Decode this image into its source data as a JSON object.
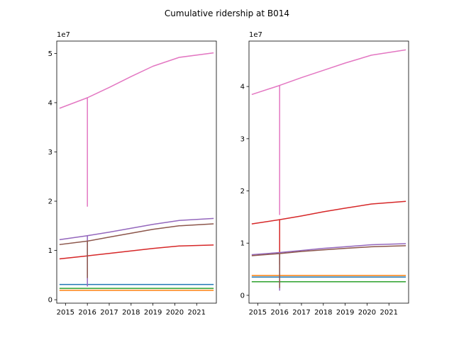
{
  "figure": {
    "title": "Cumulative ridership at B014"
  },
  "chart_data": [
    {
      "type": "line",
      "title": "",
      "xlabel": "",
      "ylabel": "",
      "x_ticks": [
        "2015",
        "2016",
        "2017",
        "2018",
        "2019",
        "2020",
        "2021"
      ],
      "xlim": [
        2014.6,
        2021.9
      ],
      "ylim": [
        -0.07,
        5.25
      ],
      "y_ticks": [
        0,
        1,
        2,
        3,
        4,
        5
      ],
      "y_offset_label": "1e7",
      "series": [
        {
          "color": "#1f77b4",
          "points": [
            [
              2014.75,
              0.31
            ],
            [
              2021.75,
              0.31
            ]
          ]
        },
        {
          "color": "#ff7f0e",
          "points": [
            [
              2014.75,
              0.19
            ],
            [
              2021.75,
              0.19
            ]
          ]
        },
        {
          "color": "#2ca02c",
          "points": [
            [
              2014.75,
              0.23
            ],
            [
              2021.75,
              0.23
            ]
          ]
        },
        {
          "color": "#d62728",
          "points": [
            [
              2014.75,
              0.83
            ],
            [
              2016.0,
              0.89
            ],
            [
              2017.0,
              0.94
            ],
            [
              2018.0,
              0.99
            ],
            [
              2019.0,
              1.04
            ],
            [
              2020.2,
              1.09
            ],
            [
              2021.75,
              1.11
            ]
          ]
        },
        {
          "color": "#9467bd",
          "points": [
            [
              2014.75,
              1.22
            ],
            [
              2016.0,
              1.3
            ],
            [
              2017.0,
              1.37
            ],
            [
              2018.0,
              1.45
            ],
            [
              2019.0,
              1.53
            ],
            [
              2020.2,
              1.61
            ],
            [
              2021.75,
              1.65
            ]
          ]
        },
        {
          "color": "#8c564b",
          "points": [
            [
              2014.75,
              1.12
            ],
            [
              2016.0,
              1.19
            ],
            [
              2017.0,
              1.27
            ],
            [
              2018.0,
              1.35
            ],
            [
              2019.0,
              1.43
            ],
            [
              2020.2,
              1.5
            ],
            [
              2021.75,
              1.54
            ]
          ]
        },
        {
          "color": "#e377c2",
          "points": [
            [
              2014.75,
              3.89
            ],
            [
              2016.0,
              4.1
            ],
            [
              2017.0,
              4.31
            ],
            [
              2018.0,
              4.53
            ],
            [
              2019.0,
              4.74
            ],
            [
              2020.2,
              4.92
            ],
            [
              2021.75,
              5.01
            ]
          ]
        },
        {
          "color": "#e377c2",
          "points": [
            [
              2016.0,
              1.9
            ],
            [
              2016.0,
              4.1
            ]
          ]
        },
        {
          "color": "#9467bd",
          "points": [
            [
              2016.0,
              0.28
            ],
            [
              2016.0,
              1.3
            ]
          ]
        },
        {
          "color": "#8c564b",
          "points": [
            [
              2016.0,
              0.45
            ],
            [
              2016.0,
              1.19
            ]
          ]
        }
      ]
    },
    {
      "type": "line",
      "title": "",
      "xlabel": "",
      "ylabel": "",
      "x_ticks": [
        "2015",
        "2016",
        "2017",
        "2018",
        "2019",
        "2020",
        "2021"
      ],
      "xlim": [
        2014.6,
        2021.9
      ],
      "ylim": [
        -0.15,
        4.87
      ],
      "y_ticks": [
        0,
        1,
        2,
        3,
        4
      ],
      "y_offset_label": "1e7",
      "series": [
        {
          "color": "#1f77b4",
          "points": [
            [
              2014.75,
              0.35
            ],
            [
              2021.75,
              0.35
            ]
          ]
        },
        {
          "color": "#ff7f0e",
          "points": [
            [
              2014.75,
              0.38
            ],
            [
              2021.75,
              0.38
            ]
          ]
        },
        {
          "color": "#2ca02c",
          "points": [
            [
              2014.75,
              0.26
            ],
            [
              2021.75,
              0.26
            ]
          ]
        },
        {
          "color": "#d62728",
          "points": [
            [
              2014.75,
              1.37
            ],
            [
              2016.0,
              1.45
            ],
            [
              2017.0,
              1.52
            ],
            [
              2018.0,
              1.6
            ],
            [
              2019.0,
              1.67
            ],
            [
              2020.2,
              1.75
            ],
            [
              2021.75,
              1.8
            ]
          ]
        },
        {
          "color": "#9467bd",
          "points": [
            [
              2014.75,
              0.78
            ],
            [
              2016.0,
              0.82
            ],
            [
              2017.0,
              0.86
            ],
            [
              2018.0,
              0.9
            ],
            [
              2019.0,
              0.93
            ],
            [
              2020.2,
              0.97
            ],
            [
              2021.75,
              0.99
            ]
          ]
        },
        {
          "color": "#8c564b",
          "points": [
            [
              2014.75,
              0.76
            ],
            [
              2016.0,
              0.8
            ],
            [
              2017.0,
              0.84
            ],
            [
              2018.0,
              0.87
            ],
            [
              2019.0,
              0.9
            ],
            [
              2020.2,
              0.93
            ],
            [
              2021.75,
              0.95
            ]
          ]
        },
        {
          "color": "#e377c2",
          "points": [
            [
              2014.75,
              3.85
            ],
            [
              2016.0,
              4.02
            ],
            [
              2017.0,
              4.17
            ],
            [
              2018.0,
              4.31
            ],
            [
              2019.0,
              4.45
            ],
            [
              2020.2,
              4.6
            ],
            [
              2021.75,
              4.7
            ]
          ]
        },
        {
          "color": "#e377c2",
          "points": [
            [
              2016.0,
              1.55
            ],
            [
              2016.0,
              4.02
            ]
          ]
        },
        {
          "color": "#d62728",
          "points": [
            [
              2016.0,
              0.6
            ],
            [
              2016.0,
              1.45
            ]
          ]
        },
        {
          "color": "#9467bd",
          "points": [
            [
              2016.0,
              0.1
            ],
            [
              2016.0,
              0.82
            ]
          ]
        },
        {
          "color": "#8c564b",
          "points": [
            [
              2016.0,
              0.15
            ],
            [
              2016.0,
              0.8
            ]
          ]
        }
      ]
    }
  ]
}
